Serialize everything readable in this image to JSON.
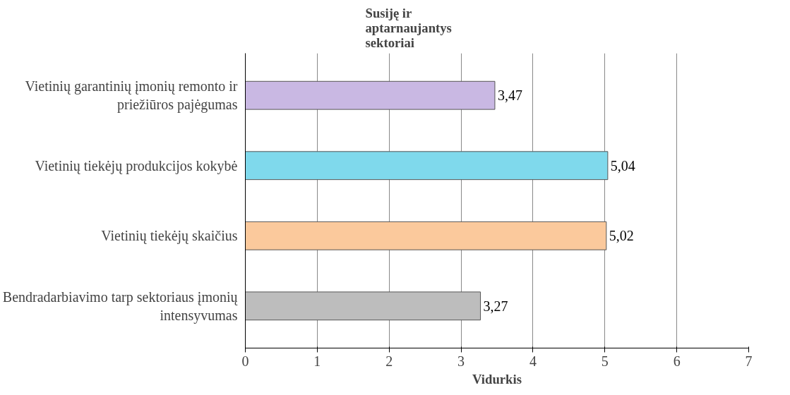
{
  "chart_data": {
    "type": "bar",
    "orientation": "horizontal",
    "ylabel": "Susiję ir aptarnaujantys sektoriai",
    "xlabel": "Vidurkis",
    "categories": [
      "Vietinių garantinių įmonių remonto ir priežiūros pajėgumas",
      "Vietinių tiekėjų produkcijos kokybė",
      "Vietinių tiekėjų skaičius",
      "Bendradarbiavimo tarp sektoriaus įmonių intensyvumas"
    ],
    "values": [
      3.47,
      5.04,
      5.02,
      3.27
    ],
    "colors": [
      "#c9b8e3",
      "#7fd9ec",
      "#fbc99c",
      "#bdbdbd"
    ],
    "value_labels": [
      "3,47",
      "5,04",
      "5,02",
      "3,27"
    ],
    "xlim": [
      0,
      7
    ],
    "xticks": [
      0,
      1,
      2,
      3,
      4,
      5,
      6,
      7
    ],
    "grid": "x"
  }
}
